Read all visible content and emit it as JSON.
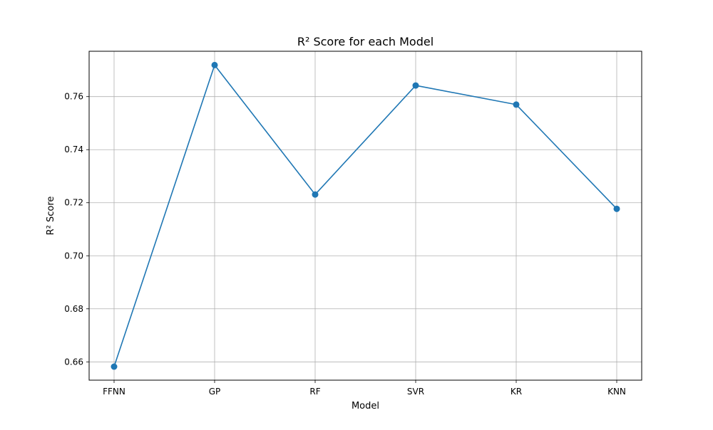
{
  "chart_data": {
    "type": "line",
    "title": "R² Score for each Model",
    "xlabel": "Model",
    "ylabel": "R² Score",
    "categories": [
      "FFNN",
      "GP",
      "RF",
      "SVR",
      "KR",
      "KNN"
    ],
    "series": [
      {
        "values": [
          0.6582,
          0.7719,
          0.7231,
          0.7642,
          0.757,
          0.7177
        ],
        "color": "#1f77b4",
        "marker": "circle"
      }
    ],
    "ylim": [
      0.6531,
      0.7771
    ],
    "yticks": [
      0.66,
      0.68,
      0.7,
      0.72,
      0.74,
      0.76
    ],
    "ytick_labels": [
      "0.66",
      "0.68",
      "0.70",
      "0.72",
      "0.74",
      "0.76"
    ],
    "grid": true,
    "colors": {
      "line": "#1f77b4",
      "grid": "#b0b0b0",
      "axes": "#000000"
    }
  }
}
